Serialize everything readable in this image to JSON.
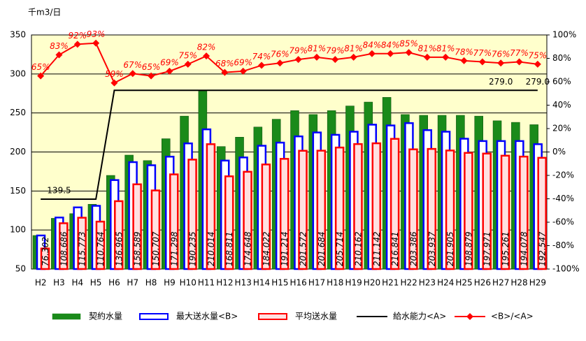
{
  "chart_data": {
    "type": "bar",
    "y_label": "千m3/日",
    "categories": [
      "H2",
      "H3",
      "H4",
      "H5",
      "H6",
      "H7",
      "H8",
      "H9",
      "H10",
      "H11",
      "H12",
      "H13",
      "H14",
      "H15",
      "H16",
      "H17",
      "H18",
      "H19",
      "H20",
      "H21",
      "H22",
      "H23",
      "H24",
      "H25",
      "H26",
      "H27",
      "H28",
      "H29"
    ],
    "series": [
      {
        "name": "契約水量",
        "type": "bar",
        "color": "#1a8a1a",
        "values": [
          93,
          115,
          121,
          133,
          170,
          196,
          189,
          217,
          246,
          278,
          207,
          219,
          232,
          242,
          253,
          248,
          253,
          259,
          264,
          270,
          248,
          247,
          247,
          247,
          246,
          240,
          238,
          235
        ]
      },
      {
        "name": "最大送水量<B>",
        "type": "bar",
        "color": "#0000ff",
        "values": [
          93,
          116,
          129,
          131,
          164,
          187,
          183,
          194,
          211,
          229,
          189,
          193,
          208,
          212,
          220,
          225,
          222,
          226,
          235,
          234,
          237,
          228,
          226,
          217,
          214,
          214,
          214,
          210
        ]
      },
      {
        "name": "平均送水量",
        "type": "bar",
        "color": "#ff0000",
        "values": [
          76.302,
          108.686,
          115.773,
          110.764,
          136.965,
          158.589,
          150.707,
          171.298,
          190.235,
          210.014,
          168.811,
          174.648,
          184.022,
          191.214,
          201.572,
          201.684,
          205.714,
          210.162,
          211.142,
          216.841,
          203.386,
          203.937,
          201.905,
          198.879,
          197.971,
          195.261,
          194.078,
          192.547
        ]
      },
      {
        "name": "給水能力<A>",
        "type": "line",
        "color": "#000000",
        "values": [
          139.5,
          139.5,
          139.5,
          139.5,
          279,
          279,
          279,
          279,
          279,
          279,
          279,
          279,
          279,
          279,
          279,
          279,
          279,
          279,
          279,
          279,
          279,
          279,
          279,
          279,
          279,
          279,
          279,
          279
        ],
        "value_labels": [
          null,
          "139.5",
          null,
          null,
          null,
          null,
          null,
          null,
          null,
          null,
          null,
          null,
          null,
          null,
          null,
          null,
          null,
          null,
          null,
          null,
          null,
          null,
          null,
          null,
          null,
          "279.0",
          null,
          "279.0"
        ]
      },
      {
        "name": "<B>/<A>",
        "type": "line",
        "axis": "y2",
        "color": "#ff0000",
        "marker": "diamond",
        "values": [
          65,
          83,
          92,
          93,
          59,
          67,
          65,
          69,
          75,
          82,
          68,
          69,
          74,
          76,
          79,
          81,
          79,
          81,
          84,
          84,
          85,
          81,
          81,
          78,
          77,
          76,
          77,
          75
        ],
        "value_labels": [
          "65%",
          "83%",
          "92%",
          "93%",
          "59%",
          "67%",
          "65%",
          "69%",
          "75%",
          "82%",
          "68%",
          "69%",
          "74%",
          "76%",
          "79%",
          "81%",
          "79%",
          "81%",
          "84%",
          "84%",
          "85%",
          "81%",
          "81%",
          "78%",
          "77%",
          "76%",
          "77%",
          "75%"
        ]
      }
    ],
    "ylim": [
      50,
      350
    ],
    "yticks": [
      50,
      100,
      150,
      200,
      250,
      300,
      350
    ],
    "y2lim": [
      -100,
      100
    ],
    "y2ticks": [
      {
        "value": -100,
        "label": "-100%"
      },
      {
        "value": -80,
        "label": "-80%"
      },
      {
        "value": -60,
        "label": "-60%"
      },
      {
        "value": -40,
        "label": "-40%"
      },
      {
        "value": -20,
        "label": "-20%"
      },
      {
        "value": 0,
        "label": "0%"
      },
      {
        "value": 20,
        "label": "20%"
      },
      {
        "value": 40,
        "label": "40%"
      },
      {
        "value": 60,
        "label": "60%"
      },
      {
        "value": 80,
        "label": "80%"
      },
      {
        "value": 100,
        "label": "100%"
      }
    ],
    "grid": true,
    "plot_background": "#ffffcc",
    "legend": "bottom"
  }
}
